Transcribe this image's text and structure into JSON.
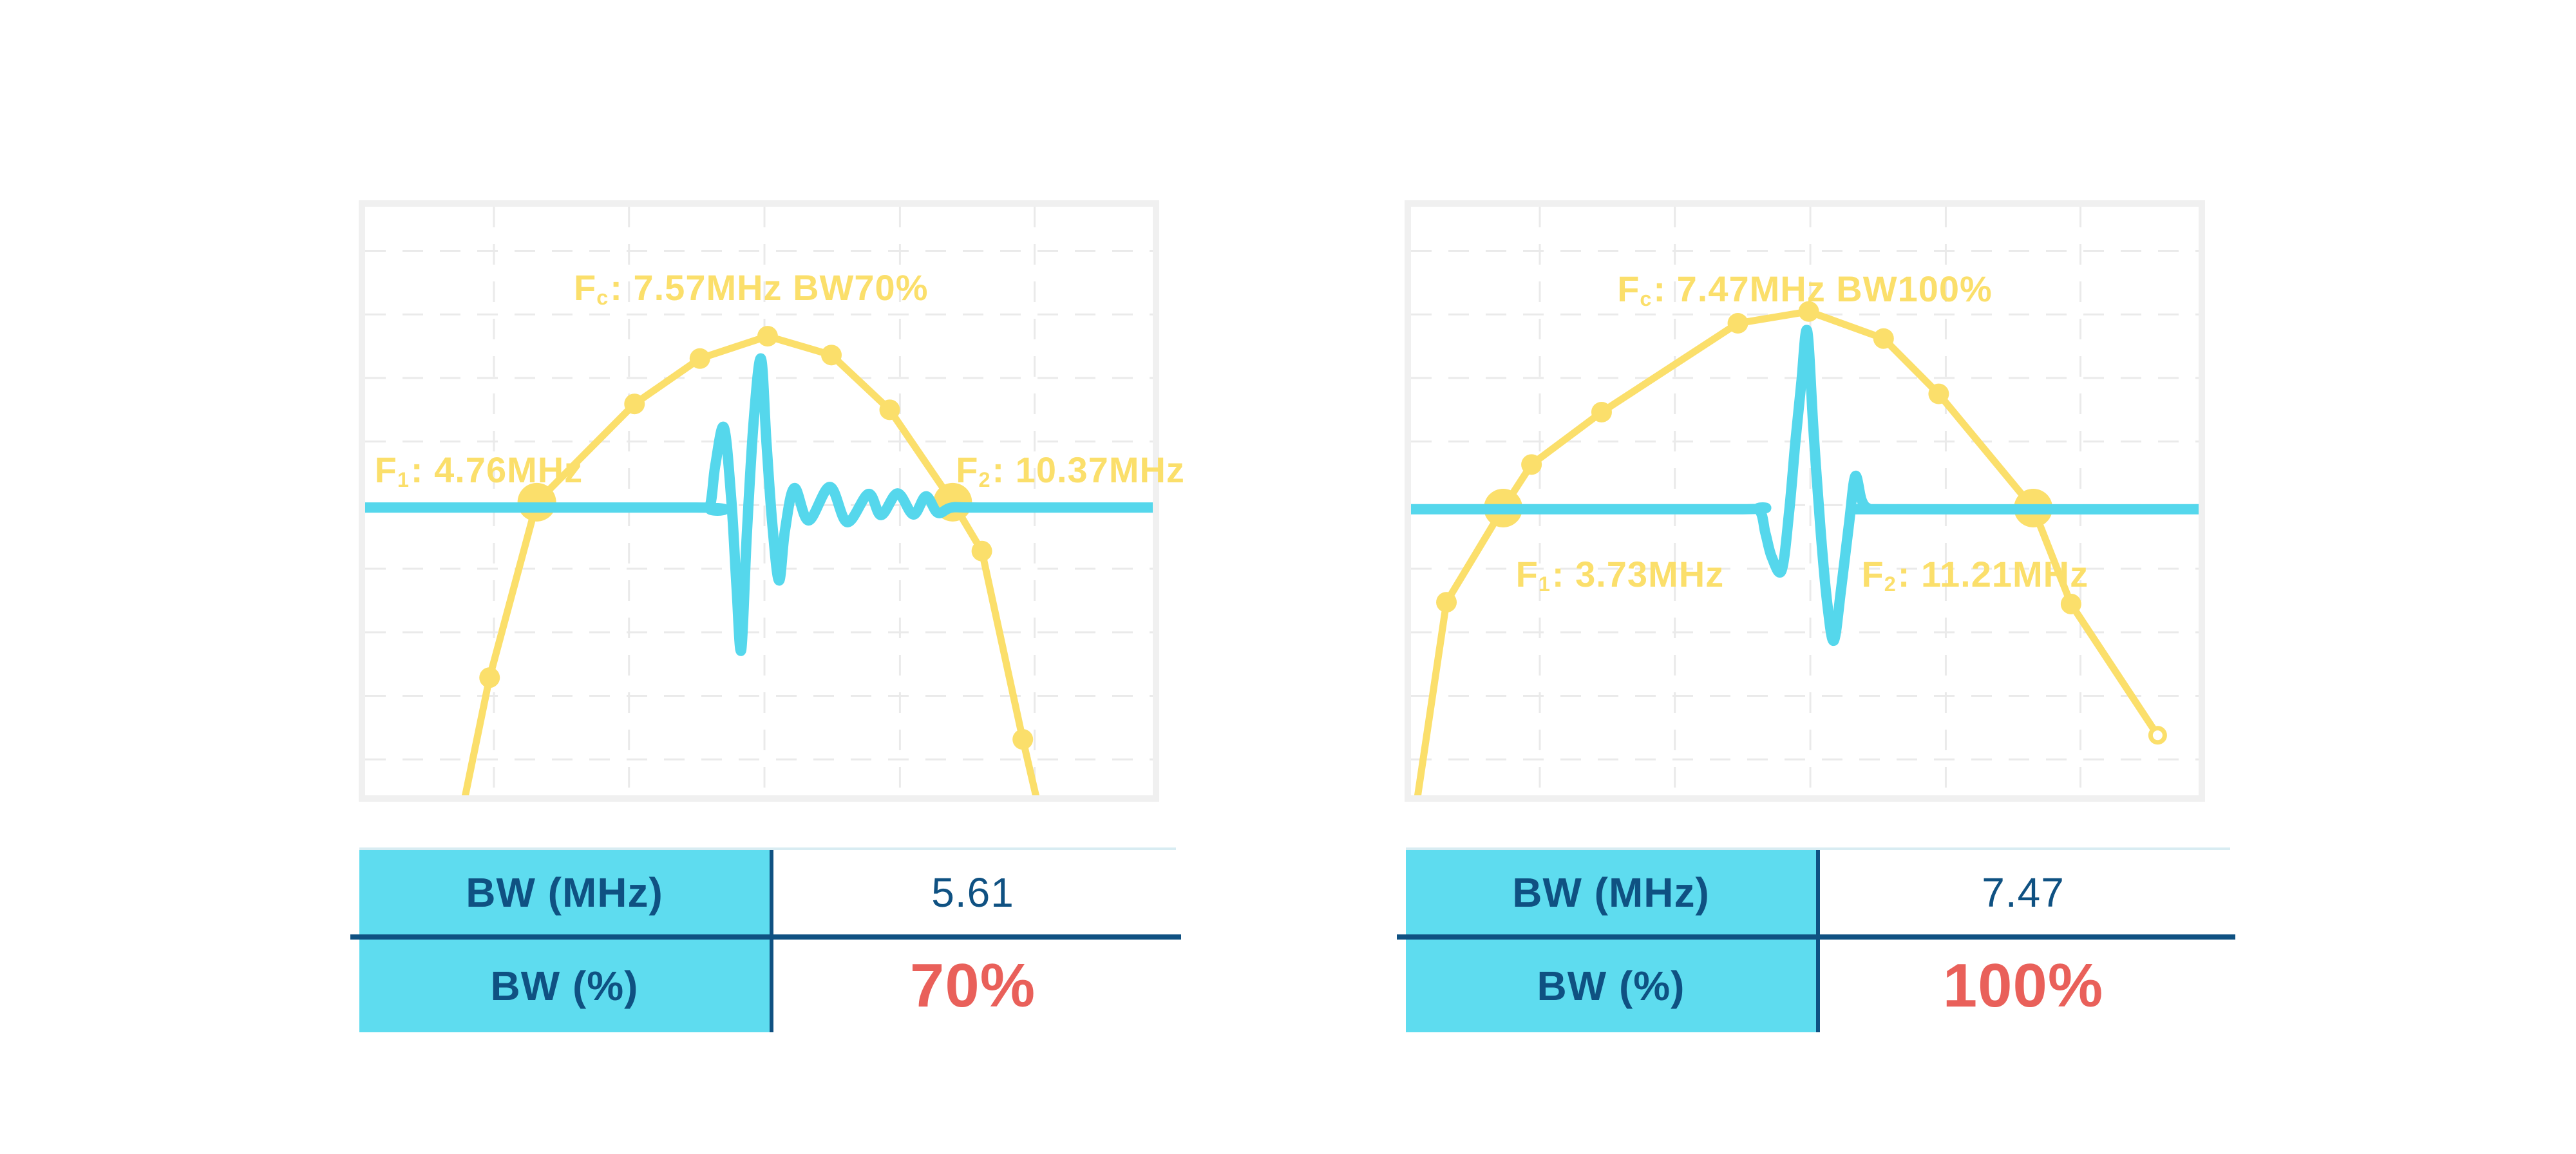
{
  "colors": {
    "spectrum_yellow": "#FBDF6B",
    "pulse_cyan": "#55D7EC",
    "table_fill_cyan": "#5EDCEF",
    "navy": "#0F5182",
    "accent_red": "#E9605A",
    "grid_gray": "#EAEAEA",
    "chart_border_gray": "#F0F0F0",
    "table_top_rule": "#D8ECF2",
    "background": "#FFFFFF"
  },
  "chart_data": [
    {
      "type": "line",
      "id": "bw70",
      "values": {
        "fc_mhz": 7.57,
        "f1_mhz": 4.76,
        "f2_mhz": 10.37,
        "bw_mhz": 5.61,
        "bw_percent": 70
      },
      "annotations": {
        "fc": {
          "pre": "F",
          "sub": "c",
          "post": ": 7.57MHz BW70%",
          "x": 0.49,
          "y": 0.138,
          "anchor": "center"
        },
        "f1": {
          "pre": "F",
          "sub": "1",
          "post": ": 4.76MHz",
          "x": 0.012,
          "y": 0.447,
          "anchor": "left"
        },
        "f2": {
          "pre": "F",
          "sub": "2",
          "post": ": 10.37MHz",
          "x": 0.75,
          "y": 0.447,
          "anchor": "left"
        }
      },
      "baseline_y": 0.511,
      "series": [
        {
          "name": "spectrum",
          "color_key": "spectrum_yellow",
          "style": "segmented",
          "width": 11,
          "points": [
            [
              0.118,
              1.06
            ],
            [
              0.158,
              0.8
            ],
            [
              0.218,
              0.502
            ],
            [
              0.342,
              0.335
            ],
            [
              0.425,
              0.258
            ],
            [
              0.511,
              0.22
            ],
            [
              0.592,
              0.252
            ],
            [
              0.666,
              0.345
            ],
            [
              0.746,
              0.502
            ],
            [
              0.783,
              0.585
            ],
            [
              0.835,
              0.905
            ],
            [
              0.862,
              1.06
            ]
          ],
          "markers": [
            {
              "x": 0.158,
              "y": 0.8,
              "size": "small"
            },
            {
              "x": 0.218,
              "y": 0.502,
              "size": "large"
            },
            {
              "x": 0.342,
              "y": 0.335,
              "size": "small"
            },
            {
              "x": 0.425,
              "y": 0.258,
              "size": "small"
            },
            {
              "x": 0.511,
              "y": 0.22,
              "size": "small"
            },
            {
              "x": 0.592,
              "y": 0.252,
              "size": "small"
            },
            {
              "x": 0.666,
              "y": 0.345,
              "size": "small"
            },
            {
              "x": 0.746,
              "y": 0.502,
              "size": "large"
            },
            {
              "x": 0.783,
              "y": 0.585,
              "size": "small"
            },
            {
              "x": 0.835,
              "y": 0.905,
              "size": "small"
            }
          ]
        },
        {
          "name": "pulse",
          "color_key": "pulse_cyan",
          "style": "smooth",
          "width": 16,
          "points": [
            [
              0,
              0.511
            ],
            [
              0.42,
              0.511
            ],
            [
              0.437,
              0.511
            ],
            [
              0.4445,
              0.44
            ],
            [
              0.4555,
              0.375
            ],
            [
              0.465,
              0.5
            ],
            [
              0.4715,
              0.645
            ],
            [
              0.4775,
              0.753
            ],
            [
              0.4845,
              0.56
            ],
            [
              0.493,
              0.37
            ],
            [
              0.5025,
              0.258
            ],
            [
              0.5095,
              0.4
            ],
            [
              0.517,
              0.54
            ],
            [
              0.5255,
              0.635
            ],
            [
              0.533,
              0.55
            ],
            [
              0.545,
              0.478
            ],
            [
              0.563,
              0.533
            ],
            [
              0.59,
              0.476
            ],
            [
              0.612,
              0.536
            ],
            [
              0.639,
              0.488
            ],
            [
              0.655,
              0.524
            ],
            [
              0.676,
              0.487
            ],
            [
              0.696,
              0.523
            ],
            [
              0.712,
              0.492
            ],
            [
              0.727,
              0.52
            ],
            [
              0.745,
              0.511
            ],
            [
              0.78,
              0.511
            ],
            [
              1,
              0.511
            ]
          ]
        }
      ],
      "table": {
        "rows": [
          {
            "label": "BW (MHz)",
            "value": "5.61",
            "emphasized": false
          },
          {
            "label": "BW (%)",
            "value": "70%",
            "emphasized": true
          }
        ]
      }
    },
    {
      "type": "line",
      "id": "bw100",
      "values": {
        "fc_mhz": 7.47,
        "f1_mhz": 3.73,
        "f2_mhz": 11.21,
        "bw_mhz": 7.47,
        "bw_percent": 100
      },
      "annotations": {
        "fc": {
          "pre": "F",
          "sub": "c",
          "post": ": 7.47MHz BW100%",
          "x": 0.5,
          "y": 0.14,
          "anchor": "center"
        },
        "f1": {
          "pre": "F",
          "sub": "1",
          "post": ": 3.73MHz",
          "x": 0.133,
          "y": 0.625,
          "anchor": "left"
        },
        "f2": {
          "pre": "F",
          "sub": "2",
          "post": ": 11.21MHz",
          "x": 0.572,
          "y": 0.625,
          "anchor": "left"
        }
      },
      "baseline_y": 0.514,
      "series": [
        {
          "name": "spectrum",
          "color_key": "spectrum_yellow",
          "style": "segmented",
          "width": 11,
          "points": [
            [
              0.002,
              1.06
            ],
            [
              0.045,
              0.672
            ],
            [
              0.117,
              0.512
            ],
            [
              0.153,
              0.438
            ],
            [
              0.242,
              0.349
            ],
            [
              0.415,
              0.198
            ],
            [
              0.505,
              0.178
            ],
            [
              0.6,
              0.224
            ],
            [
              0.67,
              0.318
            ],
            [
              0.79,
              0.512
            ],
            [
              0.838,
              0.675
            ],
            [
              0.948,
              0.898
            ]
          ],
          "markers": [
            {
              "x": 0.045,
              "y": 0.672,
              "size": "small"
            },
            {
              "x": 0.117,
              "y": 0.512,
              "size": "large"
            },
            {
              "x": 0.153,
              "y": 0.438,
              "size": "small"
            },
            {
              "x": 0.242,
              "y": 0.349,
              "size": "small"
            },
            {
              "x": 0.415,
              "y": 0.198,
              "size": "small"
            },
            {
              "x": 0.505,
              "y": 0.178,
              "size": "small"
            },
            {
              "x": 0.6,
              "y": 0.224,
              "size": "small"
            },
            {
              "x": 0.67,
              "y": 0.318,
              "size": "small"
            },
            {
              "x": 0.79,
              "y": 0.512,
              "size": "large"
            },
            {
              "x": 0.838,
              "y": 0.675,
              "size": "small"
            },
            {
              "x": 0.948,
              "y": 0.898,
              "size": "ring"
            }
          ]
        },
        {
          "name": "pulse",
          "color_key": "pulse_cyan",
          "style": "smooth",
          "width": 16,
          "points": [
            [
              0,
              0.514
            ],
            [
              0.41,
              0.514
            ],
            [
              0.441,
              0.514
            ],
            [
              0.45,
              0.555
            ],
            [
              0.458,
              0.595
            ],
            [
              0.4705,
              0.618
            ],
            [
              0.48,
              0.52
            ],
            [
              0.488,
              0.4
            ],
            [
              0.4955,
              0.3
            ],
            [
              0.503,
              0.211
            ],
            [
              0.511,
              0.38
            ],
            [
              0.52,
              0.55
            ],
            [
              0.529,
              0.68
            ],
            [
              0.537,
              0.737
            ],
            [
              0.546,
              0.65
            ],
            [
              0.556,
              0.54
            ],
            [
              0.564,
              0.458
            ],
            [
              0.572,
              0.498
            ],
            [
              0.58,
              0.512
            ],
            [
              0.595,
              0.514
            ],
            [
              1,
              0.514
            ]
          ]
        }
      ],
      "table": {
        "rows": [
          {
            "label": "BW (MHz)",
            "value": "7.47",
            "emphasized": false
          },
          {
            "label": "BW (%)",
            "value": "100%",
            "emphasized": true
          }
        ]
      }
    }
  ]
}
